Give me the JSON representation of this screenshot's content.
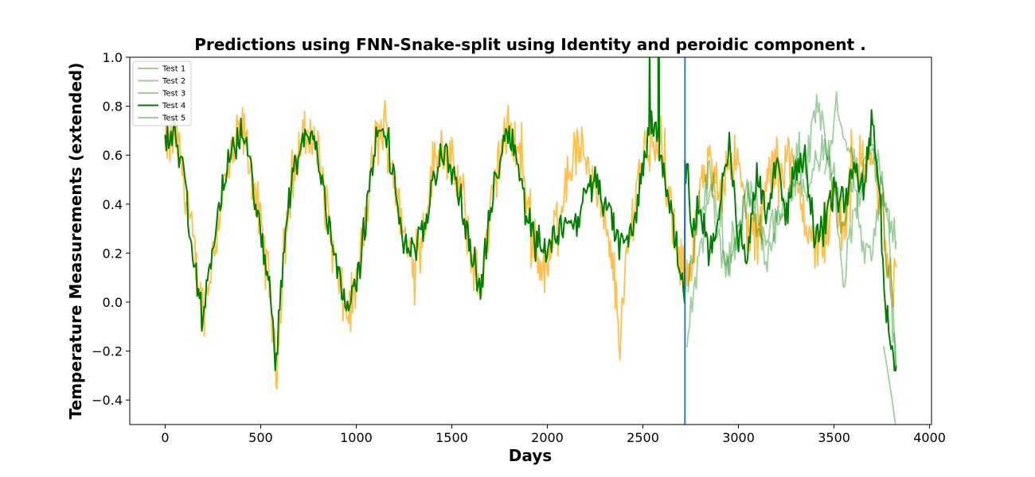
{
  "chart_data": {
    "type": "line",
    "title": "Predictions using FNN-Snake-split using Identity and peroidic component .",
    "xlabel": "Days",
    "ylabel": "Temperature Measurements (extended)",
    "xlim": [
      -185,
      4010
    ],
    "ylim": [
      -0.5,
      1.0
    ],
    "xticks": [
      0,
      500,
      1000,
      1500,
      2000,
      2500,
      3000,
      3500,
      4000
    ],
    "xtick_labels": [
      "0",
      "500",
      "1000",
      "1500",
      "2000",
      "2500",
      "3000",
      "3500",
      "4000"
    ],
    "yticks": [
      -0.4,
      -0.2,
      0.0,
      0.2,
      0.4,
      0.6,
      0.8,
      1.0
    ],
    "ytick_labels": [
      "−0.4",
      "−0.2",
      "0.0",
      "0.2",
      "0.4",
      "0.6",
      "0.8",
      "1.0"
    ],
    "grid": false,
    "legend_position": "top-left",
    "vertical_line_x": 2720,
    "colors": {
      "actual": "#ffa500",
      "prediction": "#008000",
      "vline": "#1f77b4"
    },
    "legend": [
      {
        "label": "Test 1",
        "highlight": false
      },
      {
        "label": "Test 2",
        "highlight": false
      },
      {
        "label": "Test 3",
        "highlight": false
      },
      {
        "label": "Test 4",
        "highlight": true
      },
      {
        "label": "Test 5",
        "highlight": false
      }
    ],
    "actual_anchors": [
      [
        0,
        0.62
      ],
      [
        60,
        0.68
      ],
      [
        100,
        0.5
      ],
      [
        150,
        0.2
      ],
      [
        200,
        -0.05
      ],
      [
        250,
        0.2
      ],
      [
        300,
        0.45
      ],
      [
        350,
        0.58
      ],
      [
        400,
        0.72
      ],
      [
        450,
        0.55
      ],
      [
        500,
        0.3
      ],
      [
        550,
        0.05
      ],
      [
        580,
        -0.3
      ],
      [
        620,
        0.2
      ],
      [
        660,
        0.5
      ],
      [
        700,
        0.62
      ],
      [
        750,
        0.7
      ],
      [
        800,
        0.62
      ],
      [
        850,
        0.35
      ],
      [
        900,
        0.1
      ],
      [
        950,
        -0.05
      ],
      [
        1000,
        0.05
      ],
      [
        1050,
        0.35
      ],
      [
        1100,
        0.65
      ],
      [
        1150,
        0.72
      ],
      [
        1200,
        0.5
      ],
      [
        1250,
        0.25
      ],
      [
        1300,
        0.2
      ],
      [
        1350,
        0.3
      ],
      [
        1400,
        0.55
      ],
      [
        1450,
        0.65
      ],
      [
        1500,
        0.55
      ],
      [
        1550,
        0.45
      ],
      [
        1600,
        0.2
      ],
      [
        1650,
        0.05
      ],
      [
        1700,
        0.35
      ],
      [
        1750,
        0.6
      ],
      [
        1800,
        0.7
      ],
      [
        1850,
        0.62
      ],
      [
        1900,
        0.4
      ],
      [
        1950,
        0.18
      ],
      [
        2000,
        0.12
      ],
      [
        2050,
        0.35
      ],
      [
        2100,
        0.5
      ],
      [
        2150,
        0.62
      ],
      [
        2200,
        0.6
      ],
      [
        2250,
        0.5
      ],
      [
        2300,
        0.3
      ],
      [
        2350,
        0.1
      ],
      [
        2380,
        -0.15
      ],
      [
        2420,
        0.2
      ],
      [
        2470,
        0.5
      ],
      [
        2520,
        0.65
      ],
      [
        2560,
        0.7
      ],
      [
        2600,
        0.6
      ],
      [
        2650,
        0.35
      ],
      [
        2700,
        0.1
      ],
      [
        2750,
        0.15
      ],
      [
        2800,
        0.45
      ],
      [
        2850,
        0.55
      ],
      [
        2900,
        0.45
      ],
      [
        2950,
        0.6
      ],
      [
        3000,
        0.55
      ],
      [
        3050,
        0.3
      ],
      [
        3100,
        0.25
      ],
      [
        3150,
        0.5
      ],
      [
        3200,
        0.55
      ],
      [
        3250,
        0.6
      ],
      [
        3300,
        0.5
      ],
      [
        3350,
        0.35
      ],
      [
        3400,
        0.2
      ],
      [
        3450,
        0.25
      ],
      [
        3500,
        0.45
      ],
      [
        3550,
        0.3
      ],
      [
        3600,
        0.6
      ],
      [
        3650,
        0.55
      ],
      [
        3700,
        0.6
      ],
      [
        3750,
        0.35
      ],
      [
        3800,
        0.05
      ],
      [
        3825,
        0.15
      ]
    ],
    "actual_amplitude": 0.1,
    "series": [
      {
        "name": "Test 1",
        "anchors": [
          [
            3450,
            0.5
          ],
          [
            3520,
            0.8
          ],
          [
            3600,
            0.55
          ],
          [
            3650,
            0.2
          ],
          [
            3700,
            0.2
          ],
          [
            3750,
            0.5
          ],
          [
            3780,
            0.35
          ],
          [
            3825,
            -0.28
          ]
        ],
        "amplitude": 0.05
      },
      {
        "name": "Test 2",
        "anchors": [
          [
            2730,
            0.02
          ],
          [
            2800,
            0.4
          ],
          [
            2850,
            0.5
          ],
          [
            2900,
            0.3
          ],
          [
            2950,
            0.15
          ],
          [
            3000,
            0.25
          ],
          [
            3050,
            0.45
          ],
          [
            3100,
            0.35
          ],
          [
            3150,
            0.2
          ],
          [
            3200,
            0.4
          ],
          [
            3250,
            0.35
          ],
          [
            3300,
            0.55
          ],
          [
            3350,
            0.5
          ],
          [
            3400,
            0.75
          ],
          [
            3450,
            0.7
          ],
          [
            3500,
            0.45
          ],
          [
            3550,
            0.3
          ],
          [
            3600,
            0.55
          ],
          [
            3650,
            0.5
          ],
          [
            3700,
            0.7
          ],
          [
            3750,
            0.45
          ],
          [
            3825,
            0.25
          ]
        ],
        "amplitude": 0.09
      },
      {
        "name": "Test 3",
        "anchors": [
          [
            2730,
            -0.15
          ],
          [
            2800,
            0.2
          ],
          [
            2850,
            0.45
          ],
          [
            2900,
            0.25
          ],
          [
            2950,
            0.1
          ],
          [
            3000,
            0.3
          ],
          [
            3050,
            0.5
          ],
          [
            3100,
            0.3
          ],
          [
            3150,
            0.15
          ],
          [
            3200,
            0.35
          ],
          [
            3250,
            0.4
          ],
          [
            3300,
            0.55
          ],
          [
            3350,
            0.45
          ],
          [
            3400,
            0.55
          ],
          [
            3450,
            0.65
          ],
          [
            3500,
            0.5
          ],
          [
            3550,
            0.1
          ],
          [
            3600,
            0.35
          ],
          [
            3650,
            0.5
          ],
          [
            3700,
            0.65
          ],
          [
            3750,
            0.4
          ],
          [
            3825,
            -0.25
          ]
        ],
        "amplitude": 0.07
      },
      {
        "name": "Test 4",
        "anchors": [
          [
            0,
            0.65
          ],
          [
            50,
            0.7
          ],
          [
            100,
            0.48
          ],
          [
            150,
            0.15
          ],
          [
            200,
            -0.05
          ],
          [
            250,
            0.22
          ],
          [
            300,
            0.48
          ],
          [
            350,
            0.6
          ],
          [
            400,
            0.7
          ],
          [
            450,
            0.55
          ],
          [
            500,
            0.25
          ],
          [
            550,
            0.05
          ],
          [
            580,
            -0.25
          ],
          [
            620,
            0.2
          ],
          [
            660,
            0.5
          ],
          [
            700,
            0.62
          ],
          [
            750,
            0.7
          ],
          [
            800,
            0.6
          ],
          [
            850,
            0.35
          ],
          [
            900,
            0.15
          ],
          [
            950,
            0.0
          ],
          [
            1000,
            0.05
          ],
          [
            1050,
            0.35
          ],
          [
            1100,
            0.65
          ],
          [
            1150,
            0.7
          ],
          [
            1200,
            0.48
          ],
          [
            1250,
            0.25
          ],
          [
            1300,
            0.2
          ],
          [
            1350,
            0.28
          ],
          [
            1400,
            0.5
          ],
          [
            1450,
            0.62
          ],
          [
            1500,
            0.55
          ],
          [
            1550,
            0.4
          ],
          [
            1600,
            0.2
          ],
          [
            1650,
            0.05
          ],
          [
            1700,
            0.35
          ],
          [
            1750,
            0.6
          ],
          [
            1800,
            0.72
          ],
          [
            1850,
            0.55
          ],
          [
            1880,
            0.4
          ],
          [
            1920,
            0.3
          ],
          [
            1960,
            0.25
          ],
          [
            2000,
            0.2
          ],
          [
            2050,
            0.28
          ],
          [
            2100,
            0.35
          ],
          [
            2150,
            0.3
          ],
          [
            2200,
            0.45
          ],
          [
            2250,
            0.5
          ],
          [
            2300,
            0.4
          ],
          [
            2350,
            0.3
          ],
          [
            2400,
            0.22
          ],
          [
            2450,
            0.3
          ],
          [
            2500,
            0.55
          ],
          [
            2540,
            0.75
          ],
          [
            2560,
            0.72
          ],
          [
            2590,
            0.6
          ],
          [
            2620,
            0.5
          ],
          [
            2680,
            0.2
          ],
          [
            2720,
            0.05
          ],
          [
            2725,
            0.58
          ],
          [
            2760,
            0.3
          ],
          [
            2800,
            0.4
          ],
          [
            2850,
            0.2
          ],
          [
            2900,
            0.35
          ],
          [
            2950,
            0.65
          ],
          [
            3000,
            0.25
          ],
          [
            3050,
            0.2
          ],
          [
            3100,
            0.55
          ],
          [
            3150,
            0.35
          ],
          [
            3200,
            0.6
          ],
          [
            3250,
            0.35
          ],
          [
            3300,
            0.55
          ],
          [
            3350,
            0.6
          ],
          [
            3400,
            0.25
          ],
          [
            3450,
            0.35
          ],
          [
            3500,
            0.45
          ],
          [
            3550,
            0.4
          ],
          [
            3600,
            0.55
          ],
          [
            3650,
            0.45
          ],
          [
            3700,
            0.75
          ],
          [
            3740,
            0.4
          ],
          [
            3760,
            0.05
          ],
          [
            3825,
            -0.26
          ]
        ],
        "spikes": [
          [
            2525,
            0.7
          ],
          [
            2535,
            1.05
          ],
          [
            2545,
            0.78
          ],
          [
            2580,
            1.05
          ],
          [
            2585,
            1.0
          ],
          [
            2720,
            0.58
          ]
        ],
        "amplitude": 0.06
      },
      {
        "name": "Test 5",
        "anchors": [
          [
            3760,
            -0.18
          ],
          [
            3800,
            -0.38
          ],
          [
            3825,
            -0.52
          ]
        ],
        "amplitude": 0.0
      }
    ]
  }
}
